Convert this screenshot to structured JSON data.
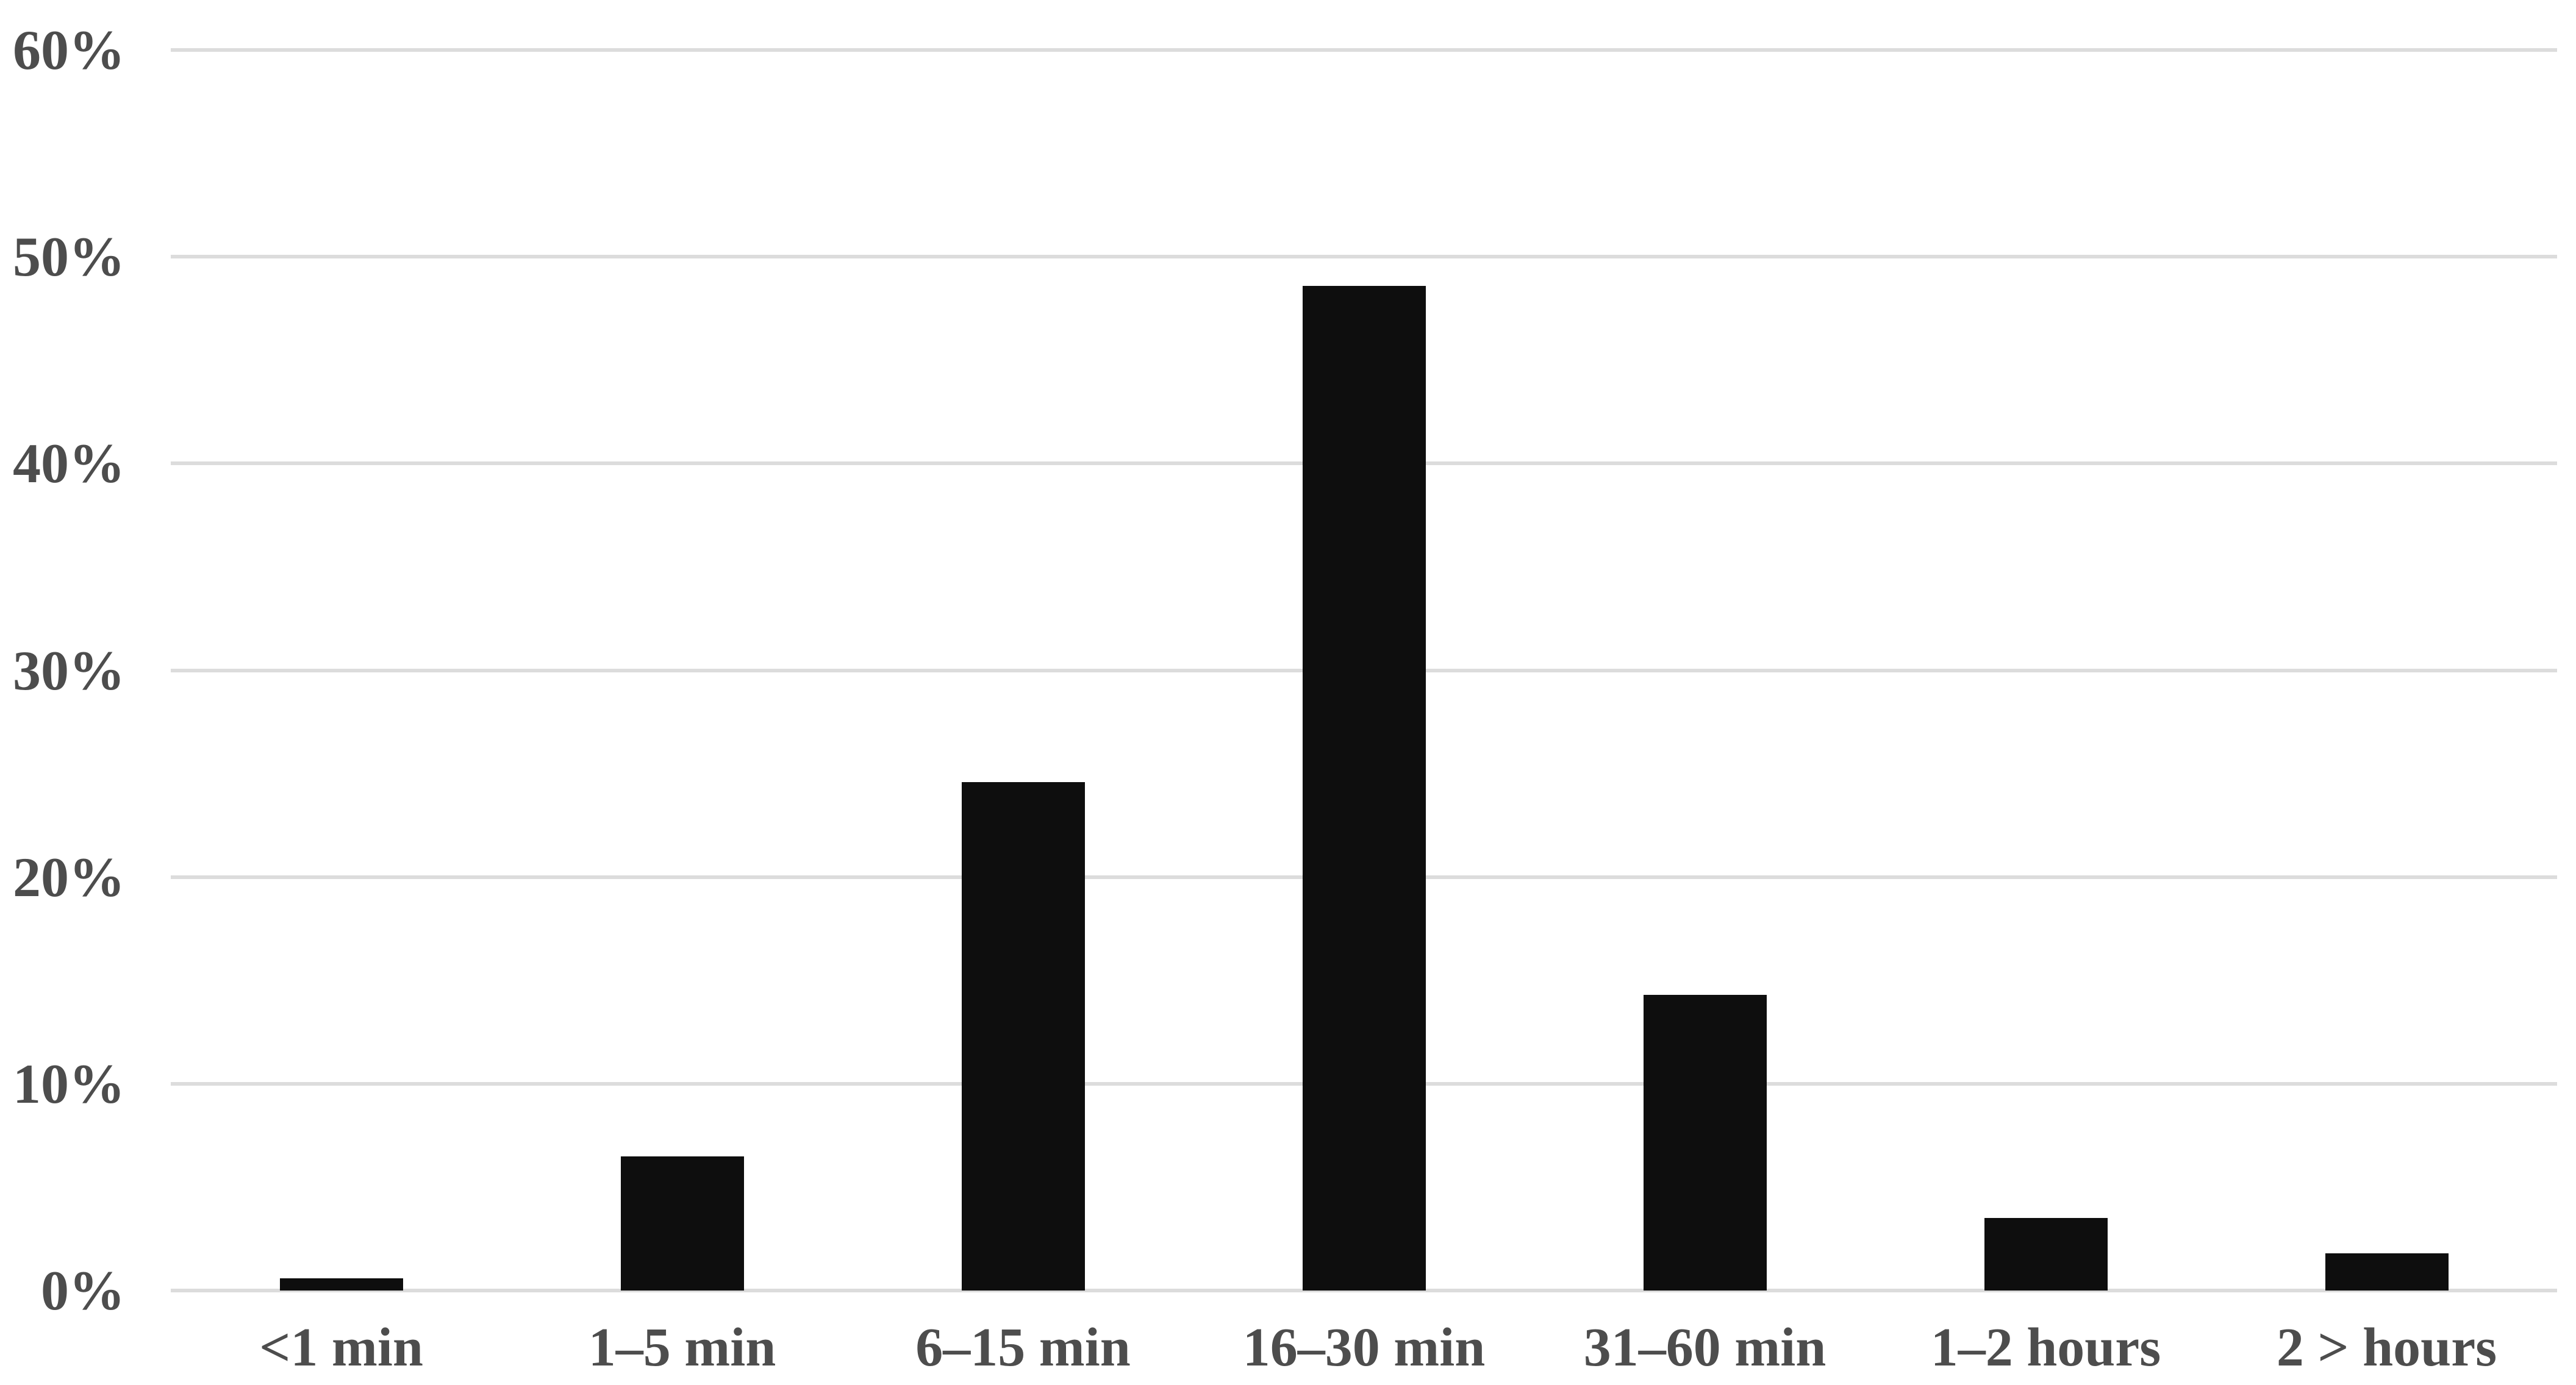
{
  "chart_data": {
    "type": "bar",
    "title": "",
    "xlabel": "",
    "ylabel": "",
    "categories": [
      "<1 min",
      "1–5 min",
      "6–15 min",
      "16–30 min",
      "31–60 min",
      "1–2 hours",
      "2 > hours"
    ],
    "values": [
      0.6,
      6.5,
      24.6,
      48.6,
      14.3,
      3.5,
      1.8
    ],
    "ylim": [
      0,
      60
    ],
    "ytick_labels_top_to_bottom": [
      "60%",
      "50%",
      "40%",
      "30%",
      "20%",
      "10%",
      "0%"
    ],
    "grid": "horizontal gridlines on",
    "legend": "none",
    "colors": {
      "bar": "#0e0e0e",
      "gridline": "#dcdcdc",
      "tick_label_text": "#4d4d4d",
      "background": "#ffffff"
    }
  }
}
